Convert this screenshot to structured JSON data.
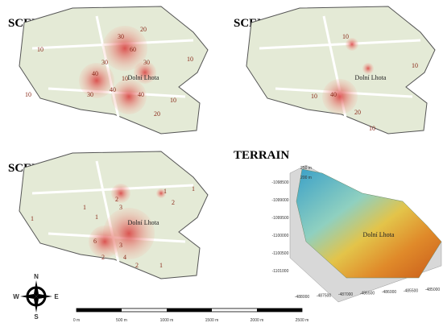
{
  "panels": [
    {
      "title": "SCENARIO A",
      "place": "Dolní Lhota",
      "contour_labels": [
        "20",
        "30",
        "60",
        "30",
        "10",
        "10",
        "30",
        "40",
        "40",
        "40",
        "30",
        "10",
        "10",
        "20",
        "10"
      ]
    },
    {
      "title": "SCENARIO B",
      "place": "Dolní Lhota",
      "contour_labels": [
        "10",
        "10",
        "40",
        "10",
        "20",
        "10"
      ]
    },
    {
      "title": "SCENARIO C",
      "place": "Dolní Lhota",
      "contour_labels": [
        "2",
        "1",
        "1",
        "2",
        "3",
        "1",
        "1",
        "6",
        "3",
        "2",
        "4",
        "2",
        "1",
        "1"
      ]
    }
  ],
  "terrain": {
    "title": "TERRAIN",
    "place": "Dolní Lhota",
    "z_labels": [
      "250 m",
      "200 m"
    ],
    "y_labels": [
      "-1098500",
      "-1099000",
      "-1099500",
      "-1100000",
      "-1100500",
      "-1101000"
    ],
    "x_labels": [
      "-488000",
      "-487500",
      "-487000",
      "-486500",
      "-486000",
      "-485500",
      "-485000"
    ]
  },
  "compass": {
    "n": "N",
    "s": "S",
    "e": "E",
    "w": "W"
  },
  "scale_bar": {
    "labels": [
      "0 m",
      "500 m",
      "1000 m",
      "1500 m",
      "2000 m",
      "2500 m"
    ]
  }
}
